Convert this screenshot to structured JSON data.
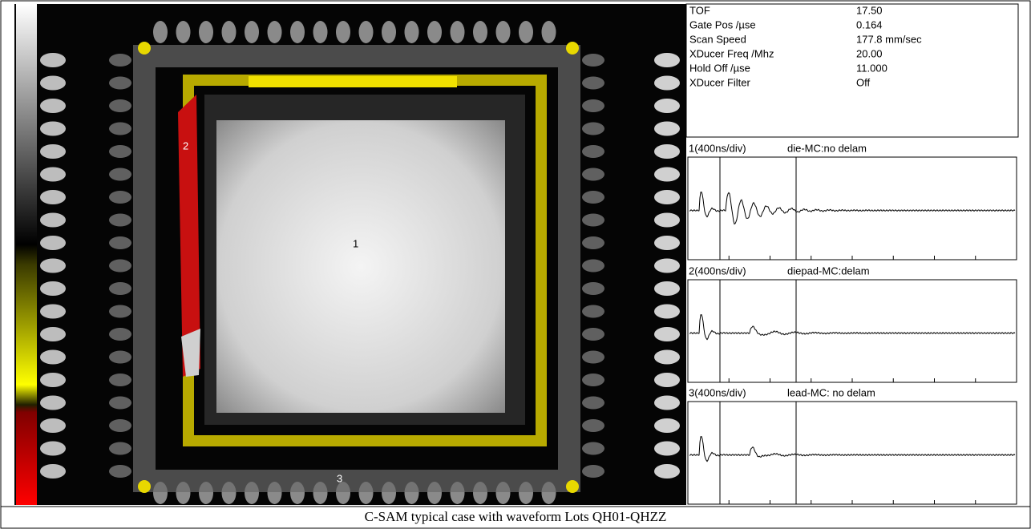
{
  "parameters": [
    {
      "label": "TOF",
      "value": "17.50"
    },
    {
      "label": "Gate Pos /µse",
      "value": "0.164"
    },
    {
      "label": "Scan Speed",
      "value": "177.8 mm/sec"
    },
    {
      "label": "XDucer Freq /Mhz",
      "value": "20.00"
    },
    {
      "label": "Hold Off /µse",
      "value": "11.000"
    },
    {
      "label": "XDucer Filter",
      "value": "Off"
    }
  ],
  "waveforms": [
    {
      "channel": "1(400ns/div)",
      "description": "die-MC:no delam"
    },
    {
      "channel": "2(400ns/div)",
      "description": "diepad-MC:delam"
    },
    {
      "channel": "3(400ns/div)",
      "description": "lead-MC: no delam"
    }
  ],
  "markers": [
    "1",
    "2",
    "3"
  ],
  "caption": "C-SAM typical case with waveform  Lots QH01-QHZZ"
}
